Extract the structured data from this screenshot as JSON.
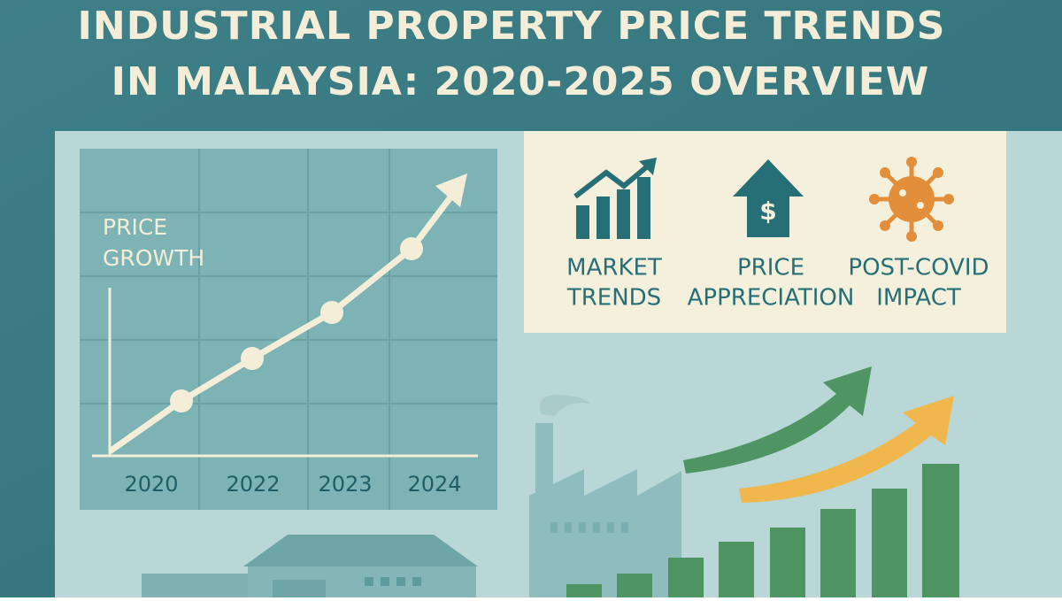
{
  "header": {
    "title": [
      "INDUSTRIAL PROPERTY PRICE TRENDS",
      "IN MALAYSIA: 2020-2025 OVERVIEW"
    ]
  },
  "chart": {
    "label": [
      "PRICE",
      "GROWTH"
    ],
    "years": [
      "2020",
      "2022",
      "2023",
      "2024"
    ]
  },
  "features": [
    {
      "lines": [
        "MARKET",
        "TRENDS"
      ]
    },
    {
      "lines": [
        "PRICE",
        "APPRECIATION"
      ]
    },
    {
      "lines": [
        "POST-COVID",
        "IMPACT"
      ]
    }
  ]
}
